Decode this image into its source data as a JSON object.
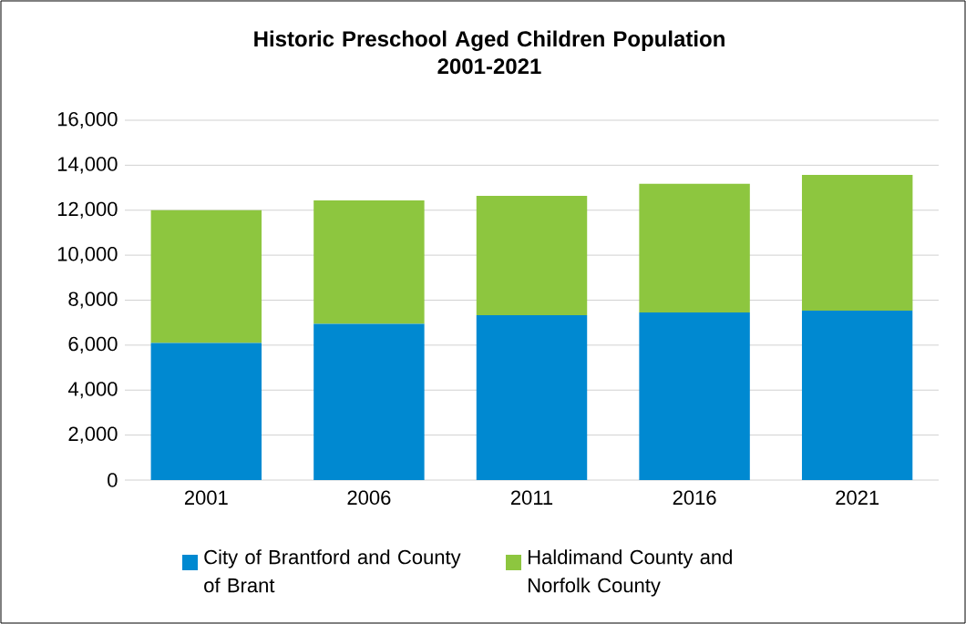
{
  "chart_data": {
    "type": "bar",
    "title": "Historic Preschool Aged Children Population\n2001-2021",
    "categories": [
      "2001",
      "2006",
      "2011",
      "2016",
      "2021"
    ],
    "series": [
      {
        "name": "City of Brantford and County of Brant",
        "color": "#0089d1",
        "values": [
          6100,
          6950,
          7330,
          7450,
          7530
        ]
      },
      {
        "name": "Haldimand County and Norfolk County",
        "color": "#8dc63f",
        "values": [
          5900,
          5480,
          5310,
          5720,
          6040
        ]
      }
    ],
    "stacked": true,
    "ylim": [
      0,
      16000
    ],
    "yticks": [
      {
        "value": 0,
        "label": "0"
      },
      {
        "value": 2000,
        "label": "2,000"
      },
      {
        "value": 4000,
        "label": "4,000"
      },
      {
        "value": 6000,
        "label": "6,000"
      },
      {
        "value": 8000,
        "label": "8,000"
      },
      {
        "value": 10000,
        "label": "10,000"
      },
      {
        "value": 12000,
        "label": "12,000"
      },
      {
        "value": 14000,
        "label": "14,000"
      },
      {
        "value": 16000,
        "label": "16,000"
      }
    ],
    "grid": "y",
    "legend": "bottom"
  }
}
